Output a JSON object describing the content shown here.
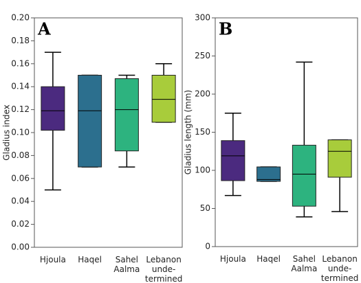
{
  "chart_data": [
    {
      "type": "box",
      "panel": "A",
      "y_label": "Gladius index",
      "categories": [
        [
          "Hjoula"
        ],
        [
          "Haqel"
        ],
        [
          "Sahel",
          "Aalma"
        ],
        [
          "Lebanon",
          "unde-",
          "termined"
        ]
      ],
      "colors": [
        "#4b2a7f",
        "#2c6f8e",
        "#2db37f",
        "#a8cc3b"
      ],
      "boxes": [
        {
          "min": 0.05,
          "q1": 0.102,
          "median": 0.119,
          "q3": 0.14,
          "max": 0.17
        },
        {
          "min": 0.07,
          "q1": 0.07,
          "median": 0.119,
          "q3": 0.15,
          "max": 0.15
        },
        {
          "min": 0.07,
          "q1": 0.084,
          "median": 0.12,
          "q3": 0.147,
          "max": 0.15
        },
        {
          "min": 0.109,
          "q1": 0.109,
          "median": 0.129,
          "q3": 0.15,
          "max": 0.16
        }
      ],
      "ylim": [
        0,
        0.2
      ],
      "yticks": [
        {
          "value": 0,
          "label": "0.00"
        },
        {
          "value": 0.02,
          "label": "0.02"
        },
        {
          "value": 0.04,
          "label": "0.04"
        },
        {
          "value": 0.06,
          "label": "0.06"
        },
        {
          "value": 0.08,
          "label": "0.08"
        },
        {
          "value": 0.1,
          "label": "0.10"
        },
        {
          "value": 0.12,
          "label": "0.12"
        },
        {
          "value": 0.14,
          "label": "0.14"
        },
        {
          "value": 0.16,
          "label": "0.16"
        },
        {
          "value": 0.18,
          "label": "0.18"
        },
        {
          "value": 0.2,
          "label": "0.20"
        }
      ]
    },
    {
      "type": "box",
      "panel": "B",
      "y_label": "Gladius length (mm)",
      "categories": [
        [
          "Hjoula"
        ],
        [
          "Haqel"
        ],
        [
          "Sahel",
          "Aalma"
        ],
        [
          "Lebanon",
          "unde-",
          "termined"
        ]
      ],
      "colors": [
        "#4b2a7f",
        "#2c6f8e",
        "#2db37f",
        "#a8cc3b"
      ],
      "boxes": [
        {
          "min": 67,
          "q1": 86.5,
          "median": 119,
          "q3": 139,
          "max": 175
        },
        {
          "min": 85.6,
          "q1": 85.6,
          "median": 88,
          "q3": 104.5,
          "max": 104.5
        },
        {
          "min": 39,
          "q1": 53,
          "median": 95,
          "q3": 133,
          "max": 242
        },
        {
          "min": 46,
          "q1": 91,
          "median": 125,
          "q3": 140,
          "max": 140
        }
      ],
      "ylim": [
        0,
        300
      ],
      "yticks": [
        0,
        50,
        100,
        150,
        200,
        250,
        300
      ]
    }
  ]
}
